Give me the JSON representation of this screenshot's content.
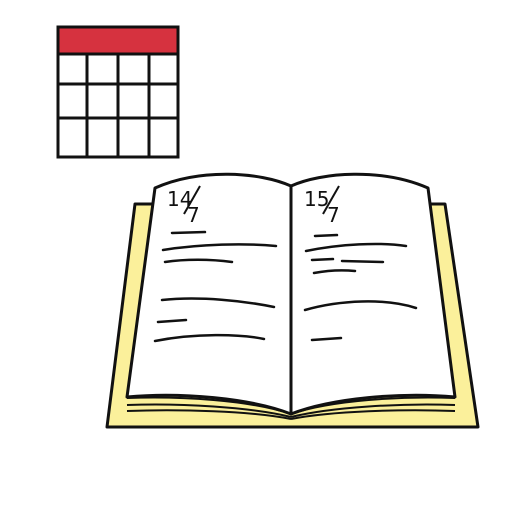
{
  "page": {
    "date_left": {
      "day": "14",
      "month": "7"
    },
    "date_right": {
      "day": "15",
      "month": "7"
    }
  },
  "colors": {
    "calendar_header": "#d6323f",
    "book_cover": "#fbf09b",
    "outline": "#111111",
    "paper": "#ffffff"
  },
  "icons": [
    "calendar-icon",
    "open-diary-book-icon"
  ]
}
